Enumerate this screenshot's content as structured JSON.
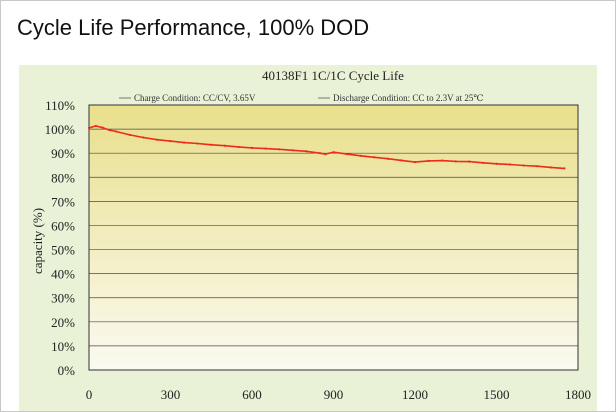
{
  "page": {
    "heading": "Cycle Life Performance, 100% DOD"
  },
  "chart_data": {
    "type": "line",
    "title": "40138F1  1C/1C  Cycle Life",
    "legend": [
      "Charge Condition: CC/CV, 3.65V",
      "Discharge Condition: CC to 2.3V at 25℃"
    ],
    "legend_position": "top",
    "xlabel": "",
    "ylabel": "capacity (%)",
    "xlim": [
      0,
      1800
    ],
    "ylim": [
      0,
      110
    ],
    "x_ticks": [
      0,
      300,
      600,
      900,
      1200,
      1500,
      1800
    ],
    "x_tick_labels": [
      "0",
      "300",
      "600",
      "900",
      "1200",
      "1500",
      "1800"
    ],
    "y_ticks": [
      0,
      10,
      20,
      30,
      40,
      50,
      60,
      70,
      80,
      90,
      100,
      110
    ],
    "y_tick_labels": [
      "0%",
      "10%",
      "20%",
      "30%",
      "40%",
      "50%",
      "60%",
      "70%",
      "80%",
      "90%",
      "100%",
      "110%"
    ],
    "grid": true,
    "series": [
      {
        "color": "#ee2a1a",
        "x": [
          0,
          25,
          50,
          75,
          100,
          150,
          200,
          250,
          300,
          350,
          400,
          450,
          500,
          550,
          600,
          650,
          700,
          750,
          800,
          850,
          870,
          900,
          950,
          1000,
          1050,
          1100,
          1150,
          1200,
          1250,
          1300,
          1350,
          1400,
          1450,
          1500,
          1550,
          1600,
          1650,
          1700,
          1750
        ],
        "y": [
          100.5,
          101.3,
          100.6,
          99.6,
          99.0,
          97.6,
          96.5,
          95.6,
          95.0,
          94.4,
          94.0,
          93.5,
          93.1,
          92.6,
          92.2,
          91.9,
          91.6,
          91.2,
          90.8,
          90.0,
          89.6,
          90.4,
          89.6,
          88.9,
          88.3,
          87.7,
          87.0,
          86.3,
          86.8,
          86.9,
          86.6,
          86.5,
          86.0,
          85.6,
          85.3,
          84.9,
          84.6,
          84.1,
          83.7
        ]
      }
    ]
  },
  "colors": {
    "outer_background": "#e9f1d7",
    "plot_gradient_top": "#e9df8c",
    "plot_gradient_bottom": "#fbfaf1",
    "grid": "#4a4a4a",
    "line": "#ee2a1a"
  }
}
